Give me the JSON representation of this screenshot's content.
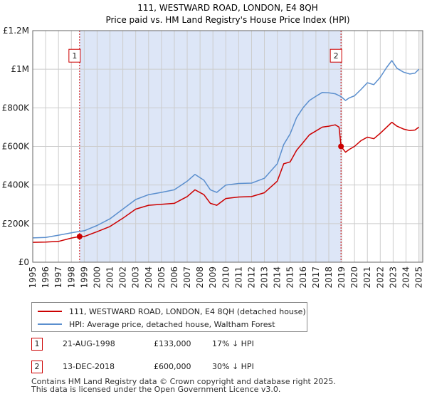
{
  "chart_data": {
    "type": "line",
    "title": "111, WESTWARD ROAD, LONDON, E4 8QH",
    "subtitle": "Price paid vs. HM Land Registry's House Price Index (HPI)",
    "xlim": [
      1995,
      2025.3
    ],
    "ylim": [
      0,
      1200000
    ],
    "x_ticks": [
      1995,
      1996,
      1997,
      1998,
      1999,
      2000,
      2001,
      2002,
      2003,
      2004,
      2005,
      2006,
      2007,
      2008,
      2009,
      2010,
      2011,
      2012,
      2013,
      2014,
      2015,
      2016,
      2017,
      2018,
      2019,
      2020,
      2021,
      2022,
      2023,
      2024,
      2025
    ],
    "y_ticks": [
      {
        "value": 0,
        "label": "£0"
      },
      {
        "value": 200000,
        "label": "£200K"
      },
      {
        "value": 400000,
        "label": "£400K"
      },
      {
        "value": 600000,
        "label": "£600K"
      },
      {
        "value": 800000,
        "label": "£800K"
      },
      {
        "value": 1000000,
        "label": "£1M"
      },
      {
        "value": 1200000,
        "label": "£1.2M"
      }
    ],
    "shaded_region": {
      "start": 1998.64,
      "end": 2018.95,
      "color": "#dde6f7"
    },
    "series": [
      {
        "name": "111, WESTWARD ROAD, LONDON, E4 8QH (detached house)",
        "color": "#cc0000",
        "points": [
          [
            1995.0,
            103000
          ],
          [
            1996.0,
            104000
          ],
          [
            1997.0,
            108000
          ],
          [
            1998.0,
            125000
          ],
          [
            1998.64,
            133000
          ],
          [
            1999.0,
            133000
          ],
          [
            2000.0,
            158000
          ],
          [
            2001.0,
            185000
          ],
          [
            2002.0,
            228000
          ],
          [
            2003.0,
            275000
          ],
          [
            2004.0,
            295000
          ],
          [
            2005.0,
            300000
          ],
          [
            2006.0,
            305000
          ],
          [
            2007.0,
            340000
          ],
          [
            2007.6,
            375000
          ],
          [
            2008.3,
            350000
          ],
          [
            2008.8,
            305000
          ],
          [
            2009.3,
            295000
          ],
          [
            2010.0,
            330000
          ],
          [
            2011.0,
            338000
          ],
          [
            2012.0,
            340000
          ],
          [
            2013.0,
            360000
          ],
          [
            2014.0,
            420000
          ],
          [
            2014.5,
            510000
          ],
          [
            2015.0,
            520000
          ],
          [
            2015.5,
            580000
          ],
          [
            2016.0,
            620000
          ],
          [
            2016.5,
            660000
          ],
          [
            2017.0,
            680000
          ],
          [
            2017.5,
            700000
          ],
          [
            2018.0,
            705000
          ],
          [
            2018.5,
            712000
          ],
          [
            2018.8,
            700000
          ],
          [
            2018.95,
            600000
          ],
          [
            2019.3,
            570000
          ],
          [
            2019.6,
            585000
          ],
          [
            2020.0,
            600000
          ],
          [
            2020.5,
            630000
          ],
          [
            2021.0,
            648000
          ],
          [
            2021.5,
            640000
          ],
          [
            2022.0,
            668000
          ],
          [
            2022.5,
            700000
          ],
          [
            2022.9,
            725000
          ],
          [
            2023.3,
            705000
          ],
          [
            2023.8,
            690000
          ],
          [
            2024.3,
            682000
          ],
          [
            2024.7,
            685000
          ],
          [
            2025.0,
            700000
          ]
        ]
      },
      {
        "name": "HPI: Average price, detached house, Waltham Forest",
        "color": "#5b8fce",
        "points": [
          [
            1995.0,
            126000
          ],
          [
            1996.0,
            128000
          ],
          [
            1997.0,
            140000
          ],
          [
            1998.0,
            152000
          ],
          [
            1998.64,
            160000
          ],
          [
            1999.0,
            163000
          ],
          [
            2000.0,
            190000
          ],
          [
            2001.0,
            225000
          ],
          [
            2002.0,
            275000
          ],
          [
            2003.0,
            325000
          ],
          [
            2004.0,
            350000
          ],
          [
            2005.0,
            362000
          ],
          [
            2006.0,
            375000
          ],
          [
            2007.0,
            420000
          ],
          [
            2007.6,
            455000
          ],
          [
            2008.3,
            425000
          ],
          [
            2008.8,
            375000
          ],
          [
            2009.3,
            362000
          ],
          [
            2010.0,
            400000
          ],
          [
            2011.0,
            408000
          ],
          [
            2012.0,
            410000
          ],
          [
            2013.0,
            435000
          ],
          [
            2014.0,
            510000
          ],
          [
            2014.5,
            610000
          ],
          [
            2015.0,
            665000
          ],
          [
            2015.5,
            750000
          ],
          [
            2016.0,
            800000
          ],
          [
            2016.5,
            838000
          ],
          [
            2017.0,
            860000
          ],
          [
            2017.5,
            880000
          ],
          [
            2018.0,
            878000
          ],
          [
            2018.5,
            873000
          ],
          [
            2018.95,
            858000
          ],
          [
            2019.3,
            838000
          ],
          [
            2019.6,
            852000
          ],
          [
            2020.0,
            862000
          ],
          [
            2020.5,
            895000
          ],
          [
            2021.0,
            930000
          ],
          [
            2021.5,
            920000
          ],
          [
            2022.0,
            958000
          ],
          [
            2022.5,
            1010000
          ],
          [
            2022.9,
            1045000
          ],
          [
            2023.3,
            1005000
          ],
          [
            2023.8,
            985000
          ],
          [
            2024.3,
            975000
          ],
          [
            2024.7,
            980000
          ],
          [
            2025.0,
            1000000
          ]
        ]
      }
    ],
    "sales": [
      {
        "id": "1",
        "x": 1998.64,
        "price": 133000
      },
      {
        "id": "2",
        "x": 2018.95,
        "price": 600000
      }
    ],
    "annotation_color": "#cc0000",
    "annotation_price_level": 1070000
  },
  "legend": {
    "property_label": "111, WESTWARD ROAD, LONDON, E4 8QH (detached house)",
    "hpi_label": "HPI: Average price, detached house, Waltham Forest"
  },
  "sales_table": [
    {
      "id": "1",
      "date": "21-AUG-1998",
      "price": "£133,000",
      "hpi": "17% ↓ HPI"
    },
    {
      "id": "2",
      "date": "13-DEC-2018",
      "price": "£600,000",
      "hpi": "30% ↓ HPI"
    }
  ],
  "footer": {
    "line1": "Contains HM Land Registry data © Crown copyright and database right 2025.",
    "line2": "This data is licensed under the Open Government Licence v3.0."
  }
}
